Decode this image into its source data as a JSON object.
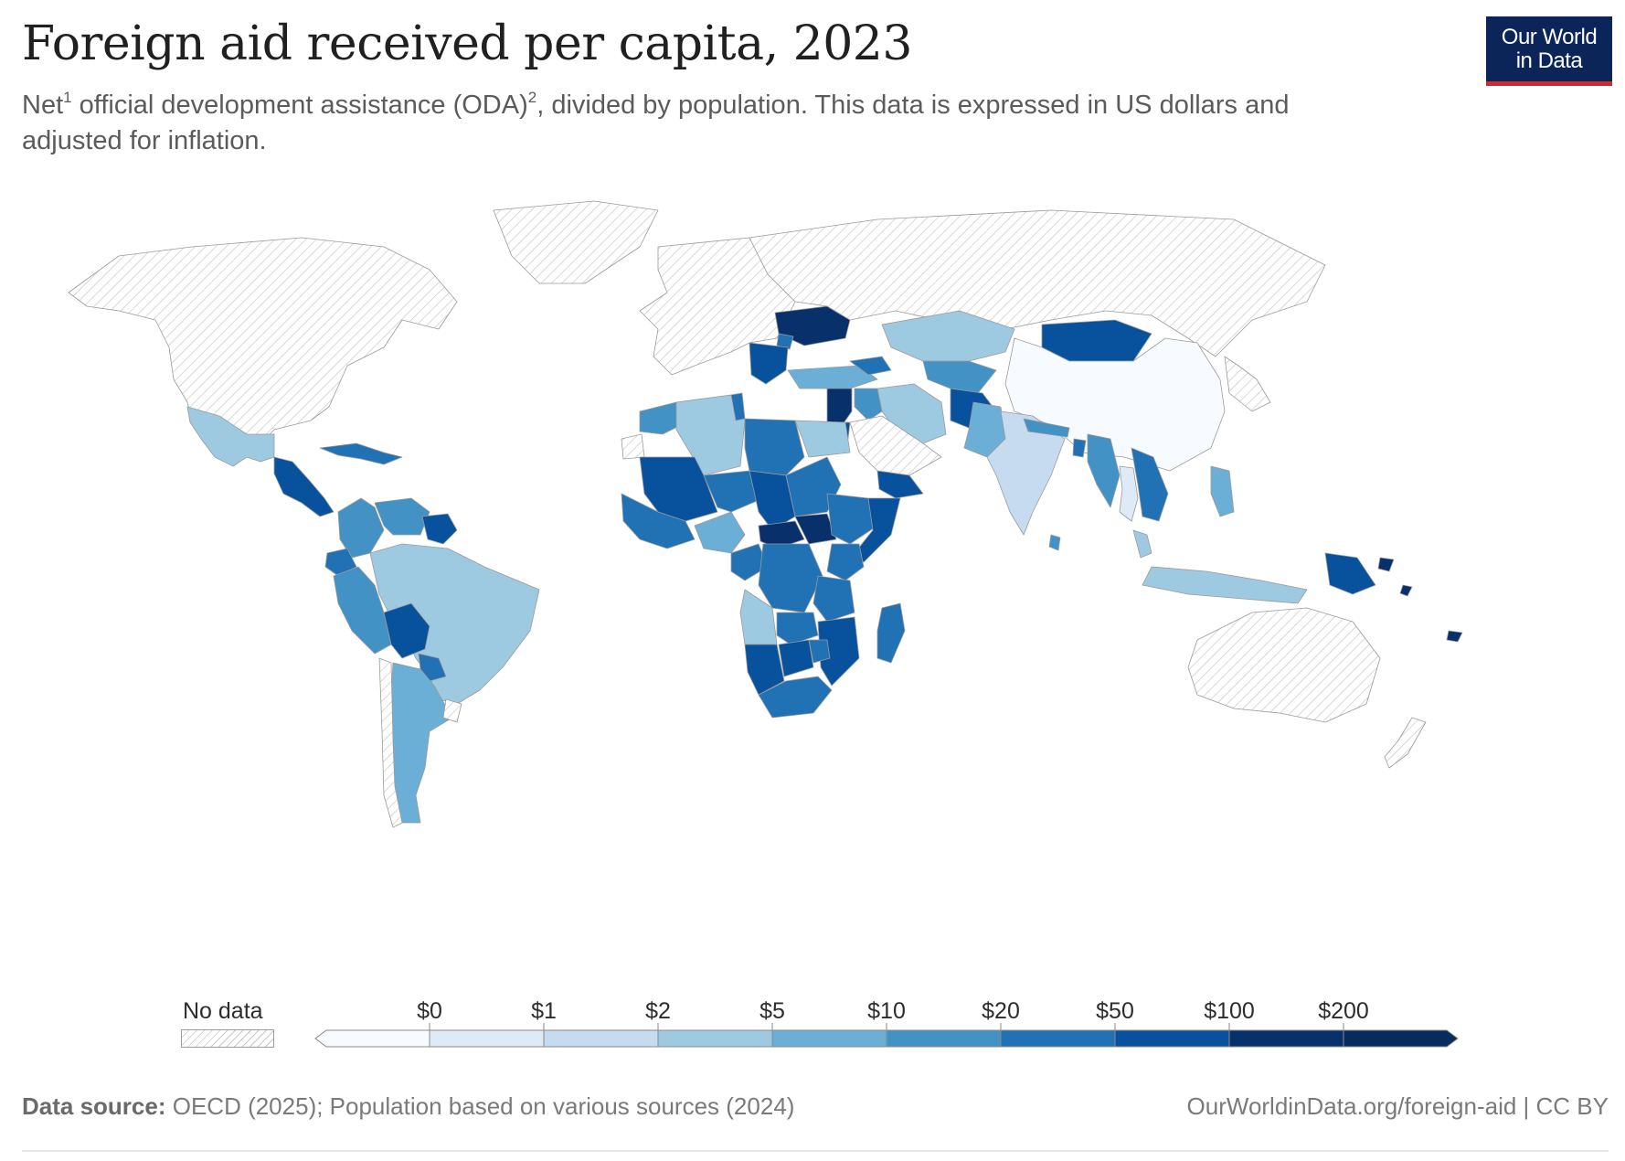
{
  "header": {
    "title": "Foreign aid received per capita, 2023",
    "subtitle_part1": "Net",
    "sup1": "1",
    "subtitle_part2": " official development assistance (ODA)",
    "sup2": "2",
    "subtitle_part3": ", divided by population. This data is expressed in US dollars and adjusted for inflation."
  },
  "logo": {
    "line1": "Our World",
    "line2": "in Data"
  },
  "legend": {
    "no_data_label": "No data",
    "bins": [
      {
        "label": "",
        "color": "#f7fbff"
      },
      {
        "label": "$0",
        "color": "#deebf7"
      },
      {
        "label": "$1",
        "color": "#c6dbef"
      },
      {
        "label": "$2",
        "color": "#9ecae1"
      },
      {
        "label": "$5",
        "color": "#6baed6"
      },
      {
        "label": "$10",
        "color": "#4292c6"
      },
      {
        "label": "$20",
        "color": "#2171b5"
      },
      {
        "label": "$50",
        "color": "#08519c"
      },
      {
        "label": "$100",
        "color": "#08306b"
      },
      {
        "label": "$200",
        "color": "#082b5e"
      }
    ]
  },
  "colors": {
    "no_data_hatch": "#c9c9c9",
    "border": "#9a9a9a",
    "brand_navy": "#0b2559",
    "brand_red": "#ce2c2c"
  },
  "map_regions": [
    {
      "name": "North America",
      "bin": "none"
    },
    {
      "name": "Greenland",
      "bin": "none"
    },
    {
      "name": "Mexico",
      "bin": 3
    },
    {
      "name": "Central America",
      "bin": 7
    },
    {
      "name": "Caribbean",
      "bin": 6
    },
    {
      "name": "Colombia",
      "bin": 5
    },
    {
      "name": "Venezuela",
      "bin": 5
    },
    {
      "name": "Guyana Suriname",
      "bin": 7
    },
    {
      "name": "Ecuador",
      "bin": 6
    },
    {
      "name": "Peru",
      "bin": 5
    },
    {
      "name": "Brazil",
      "bin": 3
    },
    {
      "name": "Bolivia",
      "bin": 7
    },
    {
      "name": "Paraguay",
      "bin": 6
    },
    {
      "name": "Argentina",
      "bin": 4
    },
    {
      "name": "Chile",
      "bin": "none"
    },
    {
      "name": "Uruguay",
      "bin": "none"
    },
    {
      "name": "Europe",
      "bin": "none"
    },
    {
      "name": "Ukraine",
      "bin": 8
    },
    {
      "name": "Moldova",
      "bin": 6
    },
    {
      "name": "Balkans",
      "bin": 7
    },
    {
      "name": "Turkey",
      "bin": 4
    },
    {
      "name": "Russia",
      "bin": "none"
    },
    {
      "name": "Kazakhstan",
      "bin": 3
    },
    {
      "name": "Central Asia",
      "bin": 5
    },
    {
      "name": "Caucasus",
      "bin": 6
    },
    {
      "name": "Mongolia",
      "bin": 7
    },
    {
      "name": "China",
      "bin": 0
    },
    {
      "name": "Japan Korea",
      "bin": "none"
    },
    {
      "name": "Iran",
      "bin": 3
    },
    {
      "name": "Iraq",
      "bin": 5
    },
    {
      "name": "Syria Lebanon",
      "bin": 8
    },
    {
      "name": "Jordan",
      "bin": 7
    },
    {
      "name": "Saudi Arabia Gulf",
      "bin": "none"
    },
    {
      "name": "Yemen",
      "bin": 7
    },
    {
      "name": "Afghanistan",
      "bin": 7
    },
    {
      "name": "Pakistan",
      "bin": 4
    },
    {
      "name": "India",
      "bin": 2
    },
    {
      "name": "Sri Lanka",
      "bin": 5
    },
    {
      "name": "Nepal Bhutan",
      "bin": 5
    },
    {
      "name": "Bangladesh",
      "bin": 6
    },
    {
      "name": "Myanmar",
      "bin": 5
    },
    {
      "name": "Thailand",
      "bin": 1
    },
    {
      "name": "Laos Cambodia Vietnam",
      "bin": 6
    },
    {
      "name": "Malaysia",
      "bin": 3
    },
    {
      "name": "Indonesia",
      "bin": 3
    },
    {
      "name": "Philippines",
      "bin": 4
    },
    {
      "name": "Papua New Guinea",
      "bin": 7
    },
    {
      "name": "Pacific Islands",
      "bin": 8
    },
    {
      "name": "Australia",
      "bin": "none"
    },
    {
      "name": "New Zealand",
      "bin": "none"
    },
    {
      "name": "Morocco",
      "bin": 5
    },
    {
      "name": "Algeria",
      "bin": 3
    },
    {
      "name": "Tunisia",
      "bin": 6
    },
    {
      "name": "Libya",
      "bin": 6
    },
    {
      "name": "Egypt",
      "bin": 3
    },
    {
      "name": "Western Sahara",
      "bin": "none"
    },
    {
      "name": "Mauritania Mali",
      "bin": 7
    },
    {
      "name": "Niger",
      "bin": 6
    },
    {
      "name": "Chad",
      "bin": 7
    },
    {
      "name": "Sudan",
      "bin": 6
    },
    {
      "name": "West Africa coast",
      "bin": 6
    },
    {
      "name": "Nigeria",
      "bin": 4
    },
    {
      "name": "Central African Republic",
      "bin": 8
    },
    {
      "name": "South Sudan",
      "bin": 8
    },
    {
      "name": "Ethiopia",
      "bin": 6
    },
    {
      "name": "Somalia",
      "bin": 7
    },
    {
      "name": "Kenya",
      "bin": 6
    },
    {
      "name": "Cameroon Gabon",
      "bin": 6
    },
    {
      "name": "DR Congo",
      "bin": 6
    },
    {
      "name": "Tanzania",
      "bin": 6
    },
    {
      "name": "Angola",
      "bin": 3
    },
    {
      "name": "Zambia",
      "bin": 6
    },
    {
      "name": "Malawi Mozambique",
      "bin": 7
    },
    {
      "name": "Namibia",
      "bin": 7
    },
    {
      "name": "Botswana",
      "bin": 7
    },
    {
      "name": "Zimbabwe",
      "bin": 6
    },
    {
      "name": "South Africa",
      "bin": 6
    },
    {
      "name": "Madagascar",
      "bin": 6
    }
  ],
  "footer": {
    "source_label": "Data source:",
    "source_text": " OECD (2025); Population based on various sources (2024)",
    "url_text": "OurWorldinData.org/foreign-aid | CC BY"
  }
}
